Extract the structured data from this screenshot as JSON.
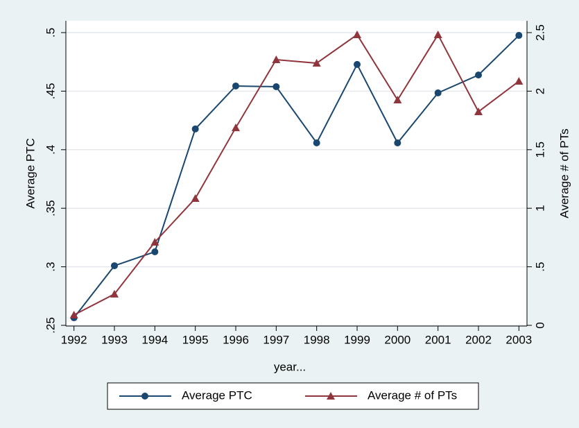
{
  "chart_data": {
    "type": "line",
    "x_label": "year...",
    "y_label": "Average PTC",
    "y2_label": "Average # of PTs",
    "x": [
      1992,
      1993,
      1994,
      1995,
      1996,
      1997,
      1998,
      1999,
      2000,
      2001,
      2002,
      2003
    ],
    "xlim": [
      1991.8,
      2003.2
    ],
    "xticks": [
      1992,
      1993,
      1994,
      1995,
      1996,
      1997,
      1998,
      1999,
      2000,
      2001,
      2002,
      2003
    ],
    "ylim": [
      0.25,
      0.5
    ],
    "yticks": [
      {
        "value": 0.25,
        "label": ".25"
      },
      {
        "value": 0.3,
        "label": ".3"
      },
      {
        "value": 0.35,
        "label": ".35"
      },
      {
        "value": 0.4,
        "label": ".4"
      },
      {
        "value": 0.45,
        "label": ".45"
      },
      {
        "value": 0.5,
        "label": ".5"
      }
    ],
    "y2lim": [
      0,
      2.5
    ],
    "y2ticks": [
      0,
      {
        "value": 0.5,
        "label": ".5"
      },
      1,
      1.5,
      2,
      2.5
    ],
    "grid": true,
    "legend": "bottom",
    "series": [
      {
        "name": "Average PTC",
        "color": "#1a476f",
        "marker": "circle",
        "values": [
          0.2565,
          0.3009,
          0.3128,
          0.4177,
          0.4544,
          0.4538,
          0.4058,
          0.4728,
          0.4058,
          0.4485,
          0.4638,
          0.4976
        ]
      },
      {
        "name": "Average # of PTs",
        "color": "#90353b",
        "marker": "triangle",
        "axis": "y2",
        "values": [
          0.089,
          0.267,
          0.711,
          1.084,
          1.688,
          2.269,
          2.239,
          2.482,
          1.925,
          2.482,
          1.825,
          2.085
        ]
      }
    ]
  }
}
